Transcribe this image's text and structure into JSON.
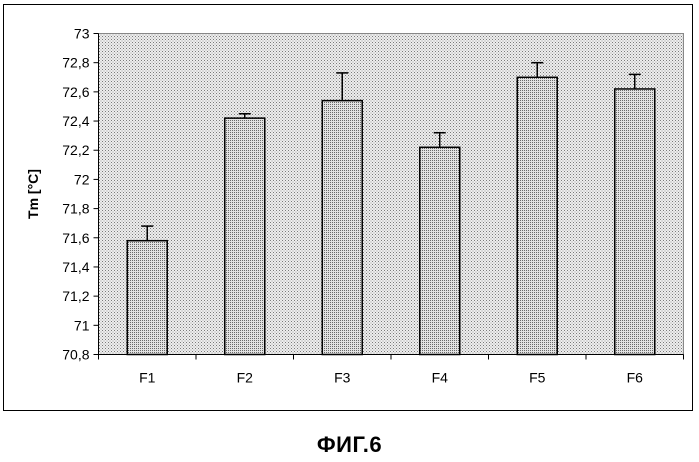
{
  "figure_caption": "ФИГ.6",
  "chart_data": {
    "type": "bar",
    "title": "",
    "xlabel": "",
    "ylabel": "Tm [°C]",
    "categories": [
      "F1",
      "F2",
      "F3",
      "F4",
      "F5",
      "F6"
    ],
    "values": [
      71.58,
      72.42,
      72.54,
      72.22,
      72.7,
      72.62
    ],
    "error_plus": [
      0.1,
      0.03,
      0.19,
      0.1,
      0.1,
      0.1
    ],
    "ylim": [
      70.8,
      73
    ],
    "y_ticks": [
      70.8,
      71,
      71.2,
      71.4,
      71.6,
      71.8,
      72,
      72.2,
      72.4,
      72.6,
      72.8,
      73
    ],
    "y_tick_labels": [
      "70,8",
      "71",
      "71,2",
      "71,4",
      "71,6",
      "71,8",
      "72",
      "72,2",
      "72,4",
      "72,6",
      "72,8",
      "73"
    ],
    "grid": false,
    "legend": "none",
    "colors": {
      "plot_background": "#d4d4d4",
      "bar_fill": "#c4c4c4",
      "outline": "#000000"
    }
  }
}
